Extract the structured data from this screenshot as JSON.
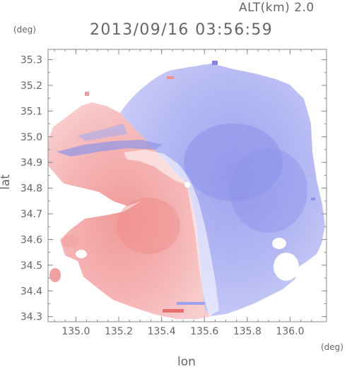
{
  "header": {
    "altitude_label": "ALT(km) 2.0",
    "timestamp": "2013/09/16 03:56:59"
  },
  "chart_data": {
    "type": "heatmap",
    "title": "2013/09/16 03:56:59",
    "subtitle": "ALT(km) 2.0",
    "xlabel": "lon",
    "ylabel": "lat",
    "x_unit": "(deg)",
    "y_unit": "(deg)",
    "xlim": [
      134.87,
      136.17
    ],
    "ylim": [
      34.28,
      35.34
    ],
    "x_ticks": [
      "135.0",
      "135.2",
      "135.4",
      "135.6",
      "135.8",
      "136.0"
    ],
    "x_tick_values": [
      135.0,
      135.2,
      135.4,
      135.6,
      135.8,
      136.0
    ],
    "y_ticks": [
      "34.3",
      "34.4",
      "34.5",
      "34.6",
      "34.7",
      "34.8",
      "34.9",
      "35.0",
      "35.1",
      "35.2",
      "35.3"
    ],
    "y_tick_values": [
      34.3,
      34.4,
      34.5,
      34.6,
      34.7,
      34.8,
      34.9,
      35.0,
      35.1,
      35.2,
      35.3
    ],
    "radar_center": {
      "lon": 135.52,
      "lat": 34.82
    },
    "colormap": {
      "negative": "#7f7fef",
      "zero": "#ffffff",
      "positive": "#ef7f7f"
    },
    "grid": false
  }
}
